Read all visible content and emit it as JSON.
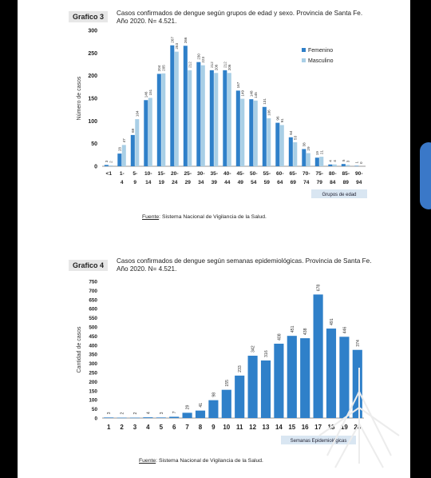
{
  "colors": {
    "femenino": "#2f80c9",
    "masculino": "#a9cfe6",
    "bars2": "#2f80c9",
    "tag_bg": "#e7e7e7",
    "xlabel_bg": "#d9e6f2"
  },
  "chart1": {
    "tag": "Grafico 3",
    "title": "Casos confirmados de dengue según grupos de edad y sexo. Provincia de Santa Fe. Año 2020. N= 4.521.",
    "source_prefix": "Fuente",
    "source_rest": ": Sistema Nacional de Vigilancia de la Salud."
  },
  "chart2": {
    "tag": "Grafico 4",
    "title": "Casos confirmados de dengue según semanas epidemiológicas. Provincia de Santa Fe. Año 2020. N= 4.521.",
    "source_prefix": "Fuente",
    "source_rest": ": Sistema Nacional de Vigilancia de la Salud."
  },
  "chart_data": [
    {
      "type": "bar",
      "categories": [
        "<1",
        "1-4",
        "5-9",
        "10-14",
        "15-19",
        "20-24",
        "25-29",
        "30-34",
        "35-39",
        "40-44",
        "45-49",
        "50-54",
        "55-59",
        "60-64",
        "65-69",
        "70-74",
        "75-79",
        "80-84",
        "85-89",
        "90-94"
      ],
      "tick_top": [
        "<1",
        "1-",
        "5-",
        "10-",
        "15-",
        "20-",
        "25-",
        "30-",
        "35-",
        "40-",
        "45-",
        "50-",
        "55-",
        "60-",
        "65-",
        "70-",
        "75-",
        "80-",
        "85-",
        "90-"
      ],
      "tick_bottom": [
        "",
        "4",
        "9",
        "14",
        "19",
        "24",
        "29",
        "34",
        "39",
        "44",
        "49",
        "54",
        "59",
        "64",
        "69",
        "74",
        "79",
        "84",
        "89",
        "94"
      ],
      "series": [
        {
          "name": "Femenino",
          "values": [
            3,
            28,
            69,
            146,
            204,
            267,
            266,
            230,
            212,
            212,
            167,
            148,
            131,
            96,
            64,
            38,
            19,
            4,
            5,
            1
          ]
        },
        {
          "name": "Masculino",
          "values": [
            2,
            47,
            104,
            151,
            205,
            253,
            212,
            223,
            206,
            206,
            149,
            145,
            106,
            91,
            53,
            29,
            21,
            4,
            3,
            0
          ]
        }
      ],
      "xlabel": "Grupos de edad",
      "ylabel": "Número de casos",
      "ylim": [
        0,
        300
      ],
      "yticks": [
        0,
        50,
        100,
        150,
        200,
        250,
        300
      ],
      "legend": "right",
      "grid": false
    },
    {
      "type": "bar",
      "categories": [
        "1",
        "2",
        "3",
        "4",
        "5",
        "6",
        "7",
        "8",
        "9",
        "10",
        "11",
        "12",
        "13",
        "14",
        "15",
        "16",
        "17",
        "18",
        "19",
        "20"
      ],
      "series": [
        {
          "values": [
            3,
            2,
            2,
            4,
            3,
            7,
            29,
            41,
            98,
            155,
            233,
            342,
            316,
            408,
            451,
            438,
            678,
            491,
            446,
            374
          ]
        }
      ],
      "xlabel": "Semanas Epidemiológicas",
      "ylabel": "Cantidad de casos",
      "ylim": [
        0,
        750
      ],
      "yticks": [
        0,
        50,
        100,
        150,
        200,
        250,
        300,
        350,
        400,
        450,
        500,
        550,
        600,
        650,
        700,
        750
      ],
      "grid": false
    }
  ]
}
